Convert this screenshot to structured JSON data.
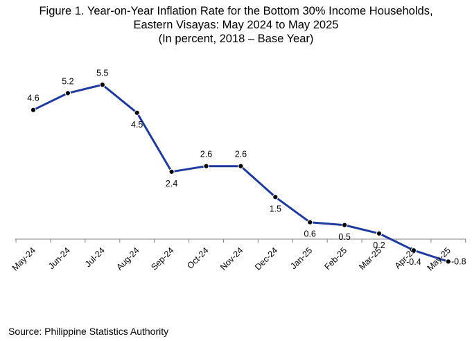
{
  "title_lines": [
    "Figure 1. Year-on-Year Inflation Rate for the Bottom 30% Income Households,",
    "Eastern Visayas: May 2024 to May 2025",
    "(In percent, 2018 – Base Year)"
  ],
  "source": "Source: Philippine Statistics Authority",
  "colors": {
    "line": "#1f3a9e",
    "marker": "#000000",
    "axis": "#808080"
  },
  "chart_data": {
    "type": "line",
    "title": "Figure 1. Year-on-Year Inflation Rate for the Bottom 30% Income Households, Eastern Visayas: May 2024 to May 2025 (In percent, 2018 – Base Year)",
    "categories": [
      "May-24",
      "Jun-24",
      "Jul-24",
      "Aug-24",
      "Sep-24",
      "Oct-24",
      "Nov-24",
      "Dec-24",
      "Jan-25",
      "Feb-25",
      "Mar-25",
      "Apr-25",
      "May-25"
    ],
    "series": [
      {
        "values": [
          4.6,
          5.2,
          5.5,
          4.5,
          2.4,
          2.6,
          2.6,
          1.5,
          0.6,
          0.5,
          0.2,
          -0.4,
          -0.8
        ]
      }
    ],
    "data_labels": [
      "4.6",
      "5.2",
      "5.5",
      "4.5",
      "2.4",
      "2.6",
      "2.6",
      "1.5",
      "0.6",
      "0.5",
      "0.2",
      "-0.4",
      "-0.8"
    ],
    "xlabel": "",
    "ylabel": "",
    "ylim": [
      -1,
      6
    ],
    "grid": false,
    "legend": "none"
  }
}
